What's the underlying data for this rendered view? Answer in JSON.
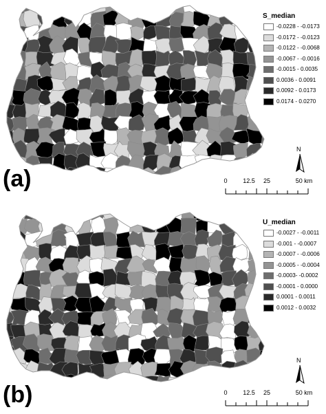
{
  "panels": [
    {
      "label": "(a)",
      "legend_title": "S_median",
      "classes": [
        {
          "range": "-0.0228 - -0.0173",
          "color": "#ffffff"
        },
        {
          "range": "-0.0172 - -0.0123",
          "color": "#dcdcdc"
        },
        {
          "range": "-0.0122 - -0.0068",
          "color": "#b4b4b4"
        },
        {
          "range": "-0.0067 - -0.0016",
          "color": "#949494"
        },
        {
          "range": "-0.0015 - 0.0035",
          "color": "#6e6e6e"
        },
        {
          "range": "0.0036 - 0.0091",
          "color": "#505050"
        },
        {
          "range": "0.0092 - 0.0173",
          "color": "#2a2a2a"
        },
        {
          "range": "0.0174 - 0.0270",
          "color": "#000000"
        }
      ]
    },
    {
      "label": "(b)",
      "legend_title": "U_median",
      "classes": [
        {
          "range": "-0.0027 - -0.0011",
          "color": "#ffffff"
        },
        {
          "range": "-0.001 - -0.0007",
          "color": "#dcdcdc"
        },
        {
          "range": "-0.0007 - -0.0006",
          "color": "#b4b4b4"
        },
        {
          "range": "-0.0005 - -0.0004",
          "color": "#949494"
        },
        {
          "range": "-0.0003- -0.0002",
          "color": "#6e6e6e"
        },
        {
          "range": "-0.0001 - 0.0000",
          "color": "#505050"
        },
        {
          "range": "0.0001 - 0.0011",
          "color": "#2a2a2a"
        },
        {
          "range": "0.0012 - 0.0032",
          "color": "#000000"
        }
      ]
    }
  ],
  "north_letter": "N",
  "scale": {
    "ticks": [
      "0",
      "12.5",
      "25",
      "50 km"
    ]
  }
}
